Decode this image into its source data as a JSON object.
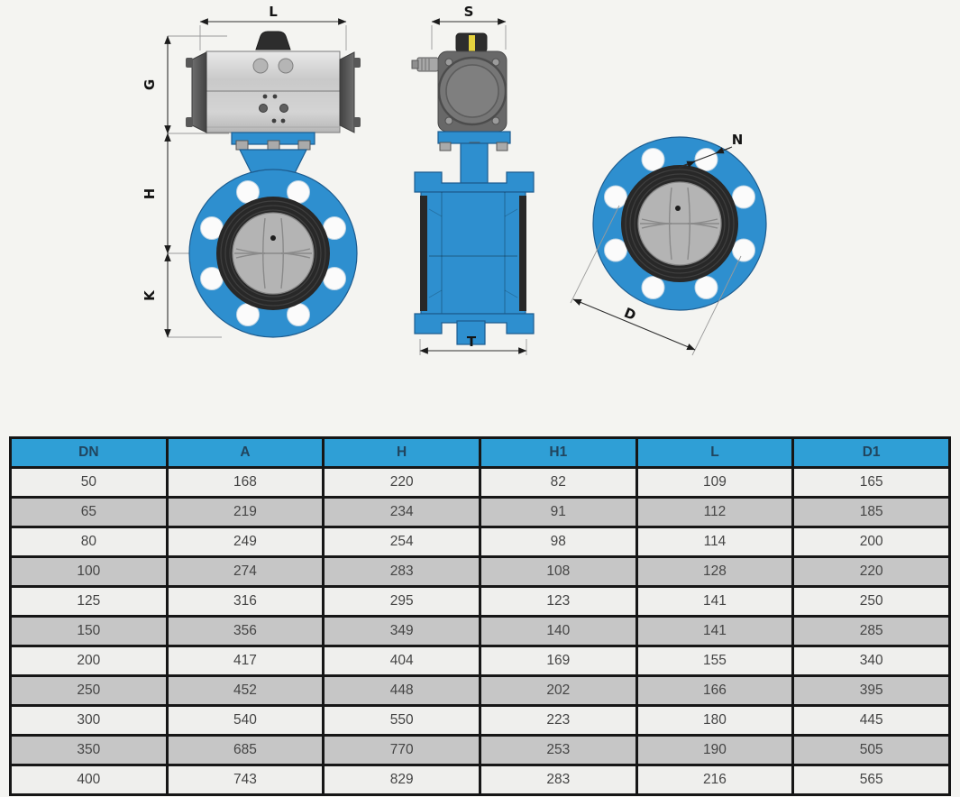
{
  "colors": {
    "bg": "#f4f4f1",
    "valve-blue": "#2e8fcf",
    "valve-blue-dark": "#1d5c8f",
    "header-blue": "#2f9fd6",
    "header-text": "#21455e",
    "row-light": "#efefed",
    "row-gray": "#c6c6c6",
    "grid-border": "#161616",
    "cell-text": "#454545",
    "seat-dark": "#282828",
    "disc-gray": "#b4b4b4",
    "indicator-yellow": "#e5d23e",
    "dim-line": "#2f2f2f"
  },
  "drawing": {
    "dim_labels": {
      "L": "L",
      "G": "G",
      "H": "H",
      "K": "K",
      "S": "S",
      "T": "T",
      "N": "N",
      "D": "D"
    }
  },
  "table": {
    "headers": [
      "DN",
      "A",
      "H",
      "H1",
      "L",
      "D1"
    ],
    "rows": [
      [
        "50",
        "168",
        "220",
        "82",
        "109",
        "165"
      ],
      [
        "65",
        "219",
        "234",
        "91",
        "112",
        "185"
      ],
      [
        "80",
        "249",
        "254",
        "98",
        "114",
        "200"
      ],
      [
        "100",
        "274",
        "283",
        "108",
        "128",
        "220"
      ],
      [
        "125",
        "316",
        "295",
        "123",
        "141",
        "250"
      ],
      [
        "150",
        "356",
        "349",
        "140",
        "141",
        "285"
      ],
      [
        "200",
        "417",
        "404",
        "169",
        "155",
        "340"
      ],
      [
        "250",
        "452",
        "448",
        "202",
        "166",
        "395"
      ],
      [
        "300",
        "540",
        "550",
        "223",
        "180",
        "445"
      ],
      [
        "350",
        "685",
        "770",
        "253",
        "190",
        "505"
      ],
      [
        "400",
        "743",
        "829",
        "283",
        "216",
        "565"
      ]
    ]
  }
}
